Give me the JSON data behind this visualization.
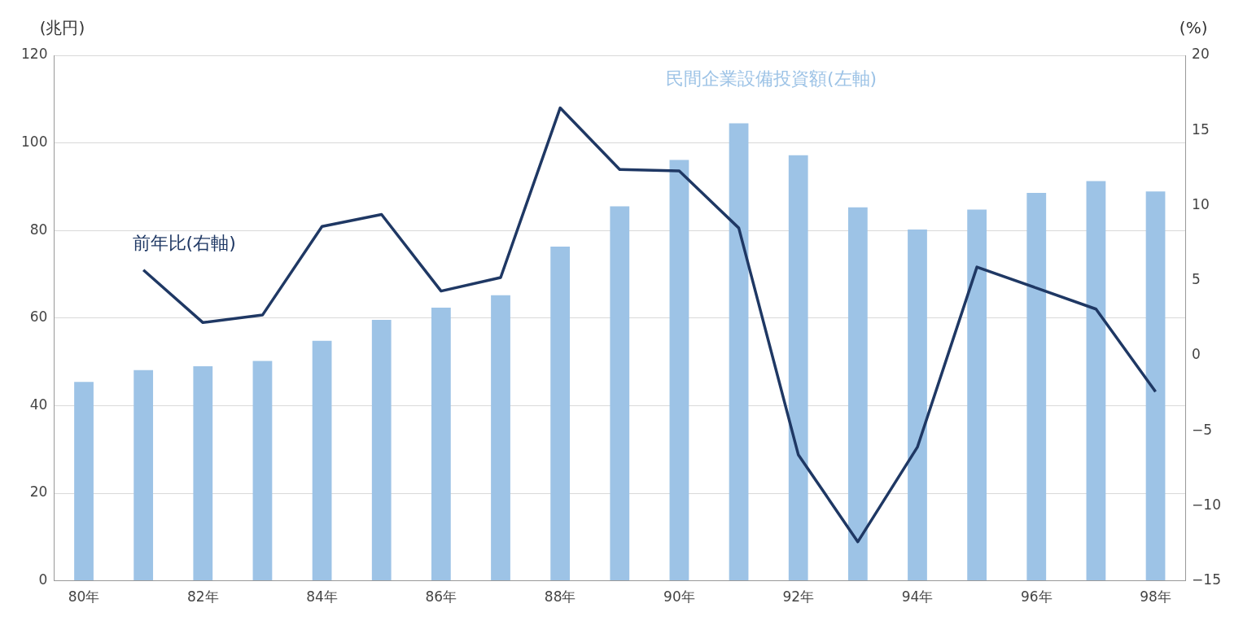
{
  "chart_data": {
    "type": "bar",
    "ylabel": "(兆円)",
    "y2label": "(%)",
    "categories": [
      "80年",
      null,
      "82年",
      null,
      "84年",
      null,
      "86年",
      null,
      "88年",
      null,
      "90年",
      null,
      "92年",
      null,
      "94年",
      null,
      "96年",
      null,
      "98年"
    ],
    "series": [
      {
        "name": "民間企業設備投資額(左軸)",
        "color": "#9dc3e6",
        "values": [
          45.4,
          48.1,
          49.0,
          50.2,
          54.8,
          59.6,
          62.4,
          65.2,
          76.3,
          85.5,
          96.1,
          104.5,
          97.2,
          85.3,
          80.2,
          84.8,
          88.6,
          91.3,
          88.9
        ]
      },
      {
        "name": "前年比(右軸)",
        "type": "line",
        "axis": "y2",
        "color": "#1f3864",
        "values": [
          null,
          5.7,
          2.2,
          2.7,
          8.6,
          9.4,
          4.3,
          5.2,
          16.5,
          12.4,
          12.3,
          8.5,
          -6.6,
          -12.4,
          -6.1,
          5.9,
          4.5,
          3.1,
          -2.4
        ]
      }
    ],
    "ylim": [
      0,
      120
    ],
    "yticks": [
      0,
      20,
      40,
      60,
      80,
      100,
      120
    ],
    "y2lim": [
      -15,
      20
    ],
    "y2ticks": [
      {
        "value": -15,
        "label": "−15"
      },
      {
        "value": -10,
        "label": "−10"
      },
      {
        "value": -5,
        "label": "−5"
      },
      0,
      5,
      10,
      15,
      20
    ],
    "grid": "y",
    "legend": false,
    "marker": "none",
    "line_style": "solid"
  }
}
